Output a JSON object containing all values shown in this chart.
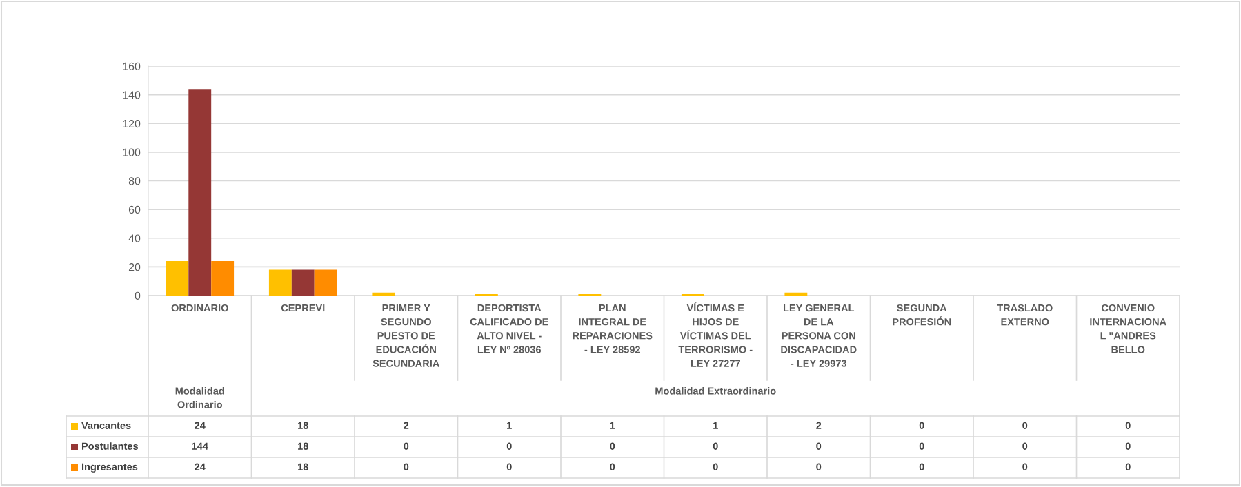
{
  "chart_data": {
    "type": "bar",
    "categories": [
      "ORDINARIO",
      "CEPREVI",
      "PRIMER Y\nSEGUNDO\nPUESTO DE\nEDUCACIÓN\nSECUNDARIA",
      "DEPORTISTA\nCALIFICADO DE\nALTO NIVEL -\nLEY Nº 28036",
      "PLAN\nINTEGRAL DE\nREPARACIONES\n- LEY 28592",
      "VÍCTIMAS E\nHIJOS DE\nVÍCTIMAS DEL\nTERRORISMO -\nLEY 27277",
      "LEY GENERAL\nDE LA\nPERSONA CON\nDISCAPACIDAD\n- LEY 29973",
      "SEGUNDA\nPROFESIÓN",
      "TRASLADO\nEXTERNO",
      "CONVENIO\nINTERNACIONA\nL \"ANDRES\nBELLO"
    ],
    "series": [
      {
        "name": "Vancantes",
        "color": "#ffc000",
        "values": [
          24,
          18,
          2,
          1,
          1,
          1,
          2,
          0,
          0,
          0
        ]
      },
      {
        "name": "Postulantes",
        "color": "#953735",
        "values": [
          144,
          18,
          0,
          0,
          0,
          0,
          0,
          0,
          0,
          0
        ]
      },
      {
        "name": "Ingresantes",
        "color": "#ff8c00",
        "values": [
          24,
          18,
          0,
          0,
          0,
          0,
          0,
          0,
          0,
          0
        ]
      }
    ],
    "ylim": [
      0,
      160
    ],
    "yticks": [
      0,
      20,
      40,
      60,
      80,
      100,
      120,
      140,
      160
    ],
    "grid": "y",
    "legend": "bottom",
    "data_labels": true,
    "annotations": [
      "Modalidad\nOrdinario",
      "Modalidad Extraordinario"
    ]
  }
}
